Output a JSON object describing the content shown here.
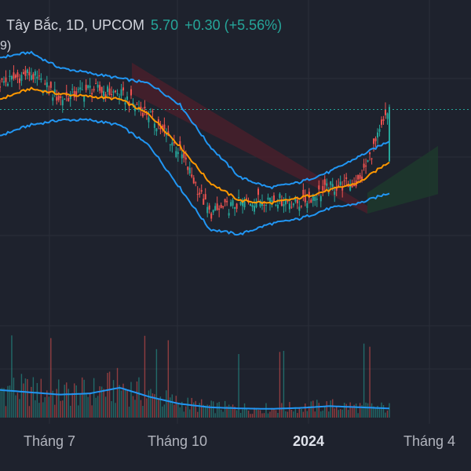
{
  "header": {
    "title": "Tây Bắc, 1D, UPCOM",
    "price": "5.70",
    "change": "+0.30 (+5.56%)"
  },
  "indicator_label": "9)",
  "colors": {
    "background": "#1e222d",
    "up": "#26a69a",
    "down": "#ef5350",
    "bollinger": "#2196f3",
    "sma": "#ff9800",
    "cloud_bear": "#4a1f2a",
    "cloud_bull": "#1d3b2c",
    "grid": "#2a2e39",
    "last_price_line": "#26a69a"
  },
  "chart_data": {
    "type": "candlestick",
    "symbol": "Tây Bắc",
    "timeframe": "1D",
    "exchange": "UPCOM",
    "x_tick_labels": [
      "Tháng 7",
      "Tháng 10",
      "2024",
      "Tháng 4"
    ],
    "last_price": 5.7,
    "price_range": [
      2.6,
      6.9
    ],
    "series": [
      {
        "name": "close",
        "x": [
          "2023-05-29",
          "2023-06-19",
          "2023-07-10",
          "2023-07-31",
          "2023-08-21",
          "2023-09-11",
          "2023-10-02",
          "2023-10-23",
          "2023-11-13",
          "2023-12-04",
          "2023-12-25",
          "2024-01-15",
          "2024-02-05",
          "2024-02-26"
        ],
        "values": [
          6.2,
          6.4,
          5.9,
          6.1,
          6.0,
          5.6,
          4.9,
          3.7,
          3.9,
          4.0,
          3.9,
          4.2,
          4.3,
          5.7
        ]
      },
      {
        "name": "sma",
        "values": [
          5.9,
          6.1,
          6.0,
          5.95,
          5.9,
          5.6,
          5.0,
          4.3,
          3.95,
          3.9,
          4.0,
          4.15,
          4.3,
          4.7
        ]
      },
      {
        "name": "bollinger_upper",
        "values": [
          6.7,
          6.8,
          6.5,
          6.4,
          6.3,
          6.2,
          5.8,
          5.0,
          4.4,
          4.2,
          4.3,
          4.5,
          4.8,
          5.1
        ]
      },
      {
        "name": "bollinger_lower",
        "values": [
          5.2,
          5.4,
          5.5,
          5.5,
          5.4,
          5.0,
          4.2,
          3.4,
          3.3,
          3.5,
          3.6,
          3.8,
          3.9,
          4.1
        ]
      },
      {
        "name": "volume_ma",
        "values": [
          120000,
          110000,
          100000,
          105000,
          130000,
          90000,
          60000,
          45000,
          40000,
          38000,
          42000,
          50000,
          45000,
          40000
        ]
      }
    ],
    "grid": true,
    "legend": "none"
  }
}
